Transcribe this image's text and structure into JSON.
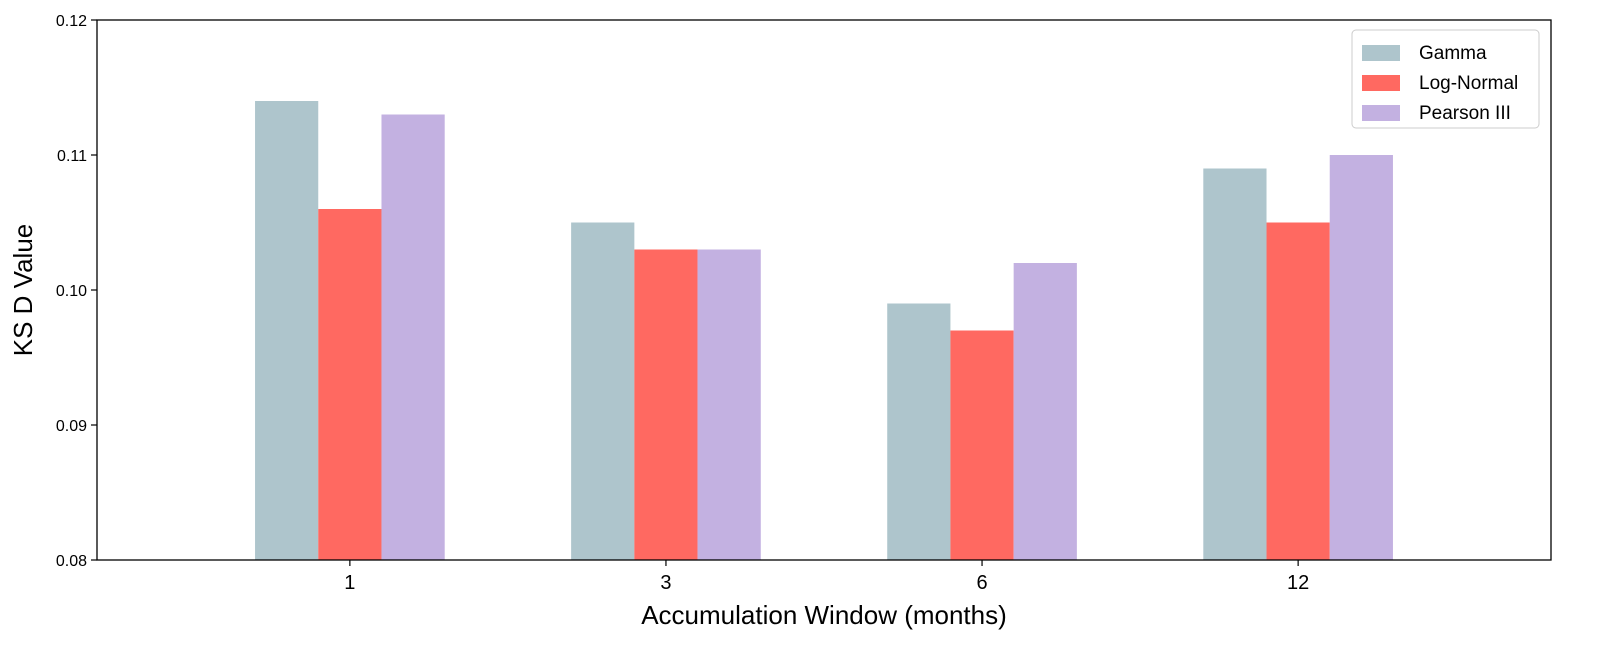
{
  "chart_data": {
    "type": "bar",
    "categories": [
      "1",
      "3",
      "6",
      "12"
    ],
    "series": [
      {
        "name": "Gamma",
        "values": [
          0.114,
          0.105,
          0.099,
          0.109
        ],
        "color": "#aec5cc"
      },
      {
        "name": "Log-Normal",
        "values": [
          0.106,
          0.103,
          0.097,
          0.105
        ],
        "color": "#ff6961"
      },
      {
        "name": "Pearson III",
        "values": [
          0.113,
          0.103,
          0.102,
          0.11
        ],
        "color": "#c3b1e1"
      }
    ],
    "xlabel": "Accumulation Window (months)",
    "ylabel": "KS D Value",
    "ylim": [
      0.08,
      0.12
    ],
    "yticks": [
      "0.08",
      "0.09",
      "0.10",
      "0.11",
      "0.12"
    ],
    "grid": false,
    "legend_position": "top-right"
  }
}
